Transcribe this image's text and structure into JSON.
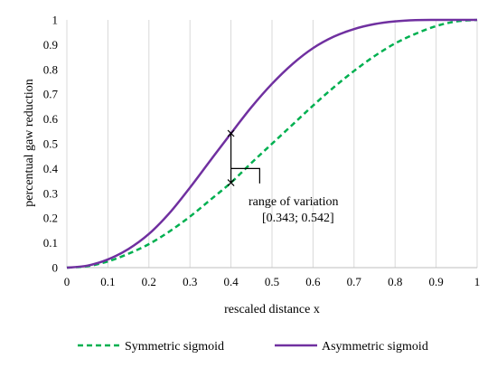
{
  "chart_data": {
    "type": "line",
    "xlabel": "rescaled distance x",
    "ylabel": "percentual gaw reduction",
    "xlim": [
      0,
      1
    ],
    "ylim": [
      0,
      1
    ],
    "xticks": [
      "0",
      "0.1",
      "0.2",
      "0.3",
      "0.4",
      "0.5",
      "0.6",
      "0.7",
      "0.8",
      "0.9",
      "1"
    ],
    "yticks": [
      "0",
      "0.1",
      "0.2",
      "0.3",
      "0.4",
      "0.5",
      "0.6",
      "0.7",
      "0.8",
      "0.9",
      "1"
    ],
    "grid": "vertical",
    "legend_position": "bottom",
    "series": [
      {
        "name": "Symmetric sigmoid",
        "color": "#00b050",
        "style": "dashed",
        "x": [
          0,
          0.05,
          0.1,
          0.15,
          0.2,
          0.25,
          0.3,
          0.35,
          0.4,
          0.45,
          0.5,
          0.55,
          0.6,
          0.65,
          0.7,
          0.75,
          0.8,
          0.85,
          0.9,
          0.95,
          1
        ],
        "y": [
          0,
          0.006,
          0.025,
          0.056,
          0.095,
          0.146,
          0.206,
          0.274,
          0.343,
          0.423,
          0.5,
          0.577,
          0.654,
          0.727,
          0.794,
          0.854,
          0.905,
          0.944,
          0.975,
          0.994,
          1
        ]
      },
      {
        "name": "Asymmetric sigmoid",
        "color": "#7030a0",
        "style": "solid",
        "x": [
          0,
          0.05,
          0.1,
          0.15,
          0.2,
          0.25,
          0.3,
          0.35,
          0.4,
          0.45,
          0.5,
          0.55,
          0.6,
          0.65,
          0.7,
          0.75,
          0.8,
          0.85,
          0.9,
          0.95,
          1
        ],
        "y": [
          0,
          0.008,
          0.033,
          0.075,
          0.136,
          0.22,
          0.323,
          0.433,
          0.542,
          0.648,
          0.742,
          0.822,
          0.886,
          0.932,
          0.963,
          0.983,
          0.994,
          0.999,
          1,
          1,
          1
        ]
      }
    ],
    "annotations": {
      "range_label": "range of variation",
      "range_values": "[0.343; 0.542]",
      "marker_x": 0.4,
      "marker_low": 0.343,
      "marker_high": 0.542,
      "bracket_y": 0.4,
      "bracket_x_end": 0.47,
      "bracket_y_end": 0.34
    }
  }
}
